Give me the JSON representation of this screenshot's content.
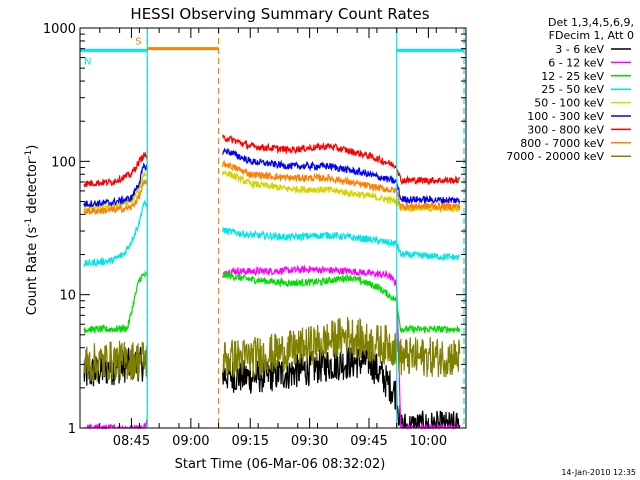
{
  "chart_data": {
    "type": "line",
    "title": "HESSI Observing Summary Count Rates",
    "xlabel": "Start Time (06-Mar-06 08:32:02)",
    "ylabel_main": "Count Rate (s",
    "ylabel_sup1": "-1",
    "ylabel_mid": " detector",
    "ylabel_sup2": "-1",
    "ylabel_end": ")",
    "y_scale": "log",
    "ylim": [
      1,
      1000
    ],
    "xlim_minutes_after_0832": [
      0,
      97.5
    ],
    "x_ticks": [
      {
        "label": "08:45",
        "value": "08:45"
      },
      {
        "label": "09:00",
        "value": "09:00"
      },
      {
        "label": "09:15",
        "value": "09:15"
      },
      {
        "label": "09:30",
        "value": "09:30"
      },
      {
        "label": "09:45",
        "value": "09:45"
      },
      {
        "label": "10:00",
        "value": "10:00"
      }
    ],
    "y_ticks": [
      {
        "label": "1",
        "value": 1
      },
      {
        "label": "10",
        "value": 10
      },
      {
        "label": "100",
        "value": 100
      },
      {
        "label": "1000",
        "value": 1000
      }
    ],
    "legend_header": [
      "Det 1,3,4,5,6,9,",
      "FDecim 1, Att 0"
    ],
    "legend_position": "right",
    "flags": [
      {
        "label": "S",
        "color": "#ff7f00",
        "start": "08:49",
        "end": "09:07",
        "level": 700
      },
      {
        "label": "N",
        "color": "#00e5e5",
        "start": "08:32",
        "end": "08:49",
        "level": 680
      },
      {
        "label": "",
        "color": "#00e5e5",
        "start": "09:52",
        "end": "10:09",
        "level": 680
      }
    ],
    "vlines": [
      {
        "time": "08:49",
        "color": "#ff7f00",
        "style": "dashed"
      },
      {
        "time": "09:07",
        "color": "#ff7f00",
        "style": "dashed"
      },
      {
        "time": "09:52",
        "color": "#00e5e5",
        "style": "solid"
      },
      {
        "time": "10:09",
        "color": "#00e5e5",
        "style": "dashed"
      },
      {
        "time": "08:49",
        "color": "#00e5e5",
        "style": "solid"
      }
    ],
    "data_gap": [
      "08:49",
      "09:08"
    ],
    "series": [
      {
        "name": "3 - 6 keV",
        "color": "#000000",
        "times": [
          "08:33",
          "08:40",
          "08:45",
          "08:48",
          "09:09",
          "09:15",
          "09:25",
          "09:35",
          "09:45",
          "09:52",
          "09:53",
          "10:00",
          "10:08"
        ],
        "values": [
          2.5,
          2.8,
          3,
          3,
          2.5,
          2.4,
          2.6,
          3,
          3.2,
          1.8,
          1,
          1,
          1
        ]
      },
      {
        "name": "6 - 12 keV",
        "color": "#ff00ff",
        "times": [
          "08:33",
          "08:45",
          "08:48",
          "09:09",
          "09:20",
          "09:30",
          "09:40",
          "09:50",
          "09:52",
          "09:53",
          "10:08"
        ],
        "values": [
          1,
          1,
          1,
          15,
          15,
          15.5,
          15,
          14,
          12,
          1,
          1
        ]
      },
      {
        "name": "12 - 25 keV",
        "color": "#00dd00",
        "times": [
          "08:33",
          "08:40",
          "08:44",
          "08:46",
          "08:47",
          "08:48",
          "09:09",
          "09:15",
          "09:25",
          "09:33",
          "09:40",
          "09:47",
          "09:52",
          "09:53",
          "10:08"
        ],
        "values": [
          5.5,
          5.5,
          5.6,
          10,
          13,
          14,
          14,
          13,
          12.2,
          12.5,
          13.5,
          11.5,
          9,
          5.5,
          5.5
        ]
      },
      {
        "name": "25 - 50 keV",
        "color": "#00e5e5",
        "times": [
          "08:33",
          "08:40",
          "08:43",
          "08:45",
          "08:47",
          "08:48",
          "09:09",
          "09:15",
          "09:25",
          "09:35",
          "09:45",
          "09:52",
          "09:53",
          "10:08"
        ],
        "values": [
          17,
          18,
          20,
          25,
          35,
          48,
          30,
          28,
          27,
          28,
          26,
          24,
          20,
          19
        ]
      },
      {
        "name": "50 - 100 keV",
        "color": "#d4d400",
        "times": [
          "08:33",
          "08:40",
          "08:45",
          "08:47",
          "08:48",
          "09:09",
          "09:15",
          "09:25",
          "09:35",
          "09:45",
          "09:52",
          "09:53",
          "10:08"
        ],
        "values": [
          44,
          46,
          50,
          62,
          80,
          82,
          68,
          62,
          61,
          55,
          50,
          45,
          44
        ]
      },
      {
        "name": "100 - 300 keV",
        "color": "#0000ff",
        "times": [
          "08:33",
          "08:40",
          "08:45",
          "08:47",
          "08:48",
          "09:09",
          "09:15",
          "09:25",
          "09:35",
          "09:45",
          "09:52",
          "09:53",
          "10:08"
        ],
        "values": [
          48,
          49,
          53,
          70,
          90,
          120,
          100,
          92,
          92,
          80,
          70,
          52,
          51
        ]
      },
      {
        "name": "300 - 800 keV",
        "color": "#ff0000",
        "times": [
          "08:33",
          "08:40",
          "08:45",
          "08:47",
          "08:48",
          "09:09",
          "09:15",
          "09:25",
          "09:35",
          "09:45",
          "09:52",
          "09:53",
          "10:08"
        ],
        "values": [
          68,
          70,
          80,
          100,
          110,
          150,
          130,
          122,
          130,
          110,
          92,
          72,
          72
        ]
      },
      {
        "name": "800 - 7000 keV",
        "color": "#ff7f00",
        "times": [
          "08:33",
          "08:40",
          "08:45",
          "08:47",
          "08:48",
          "09:09",
          "09:15",
          "09:25",
          "09:35",
          "09:45",
          "09:52",
          "09:53",
          "10:08"
        ],
        "values": [
          42,
          43,
          45,
          55,
          68,
          95,
          80,
          75,
          75,
          65,
          60,
          46,
          46
        ]
      },
      {
        "name": "7000 - 20000 keV",
        "color": "#808000",
        "times": [
          "08:33",
          "08:40",
          "08:45",
          "08:48",
          "09:09",
          "09:15",
          "09:25",
          "09:35",
          "09:40",
          "09:45",
          "09:50",
          "09:52",
          "09:53",
          "10:08"
        ],
        "values": [
          3,
          3.2,
          3.2,
          3.3,
          3.3,
          3.4,
          3.8,
          4.5,
          5,
          4.3,
          4.2,
          4,
          3.4,
          3.4
        ]
      }
    ]
  },
  "timestamp": "14-Jan-2010 12:35"
}
